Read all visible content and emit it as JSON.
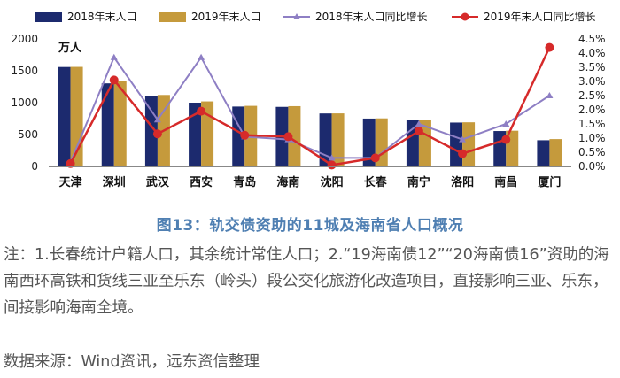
{
  "chart_data": {
    "type": "bar",
    "categories": [
      "天津",
      "深圳",
      "武汉",
      "西安",
      "青岛",
      "海南",
      "沈阳",
      "长春",
      "南宁",
      "洛阳",
      "南昌",
      "厦门"
    ],
    "series": [
      {
        "name": "2018年末人口",
        "type": "bar",
        "axis": "left",
        "color": "#1c2a6e",
        "values": [
          1560,
          1303,
          1108,
          1000,
          939,
          934,
          831,
          751,
          725,
          688,
          555,
          411
        ]
      },
      {
        "name": "2019年末人口",
        "type": "bar",
        "axis": "left",
        "color": "#c59a3c",
        "values": [
          1562,
          1344,
          1121,
          1020,
          950,
          945,
          832,
          754,
          734,
          692,
          560,
          429
        ]
      },
      {
        "name": "2018年末人口同比增长",
        "type": "line",
        "axis": "right",
        "color": "#8e7fc4",
        "values": [
          0.15,
          3.85,
          1.65,
          3.85,
          1.05,
          0.95,
          0.3,
          0.3,
          1.5,
          0.95,
          1.5,
          2.5
        ]
      },
      {
        "name": "2019年末人口同比增长",
        "type": "line",
        "axis": "right",
        "color": "#d62a2a",
        "values": [
          0.1,
          3.05,
          1.15,
          1.95,
          1.1,
          1.05,
          0.05,
          0.3,
          1.25,
          0.45,
          0.95,
          4.2
        ]
      }
    ],
    "y_left": {
      "ylim": [
        0,
        2000
      ],
      "ticks": [
        "0",
        "500",
        "1000",
        "1500",
        "2000"
      ],
      "unit": "万人"
    },
    "y_right": {
      "ylim": [
        0,
        4.5
      ],
      "ticks": [
        "0.0%",
        "0.5%",
        "1.0%",
        "1.5%",
        "2.0%",
        "2.5%",
        "3.0%",
        "3.5%",
        "4.0%",
        "4.5%"
      ]
    },
    "legend": "top",
    "grid": false
  },
  "caption": "图13：轨交债资助的11城及海南省人口概况",
  "note": "注：1.长春统计户籍人口，其余统计常住人口；2.“19海南债12”“20海南债16”资助的海南西环高铁和货线三亚至乐东（岭头）段公交化旅游化改造项目，直接影响三亚、乐东，间接影响海南全境。",
  "source": "数据来源：Wind资讯，远东资信整理"
}
